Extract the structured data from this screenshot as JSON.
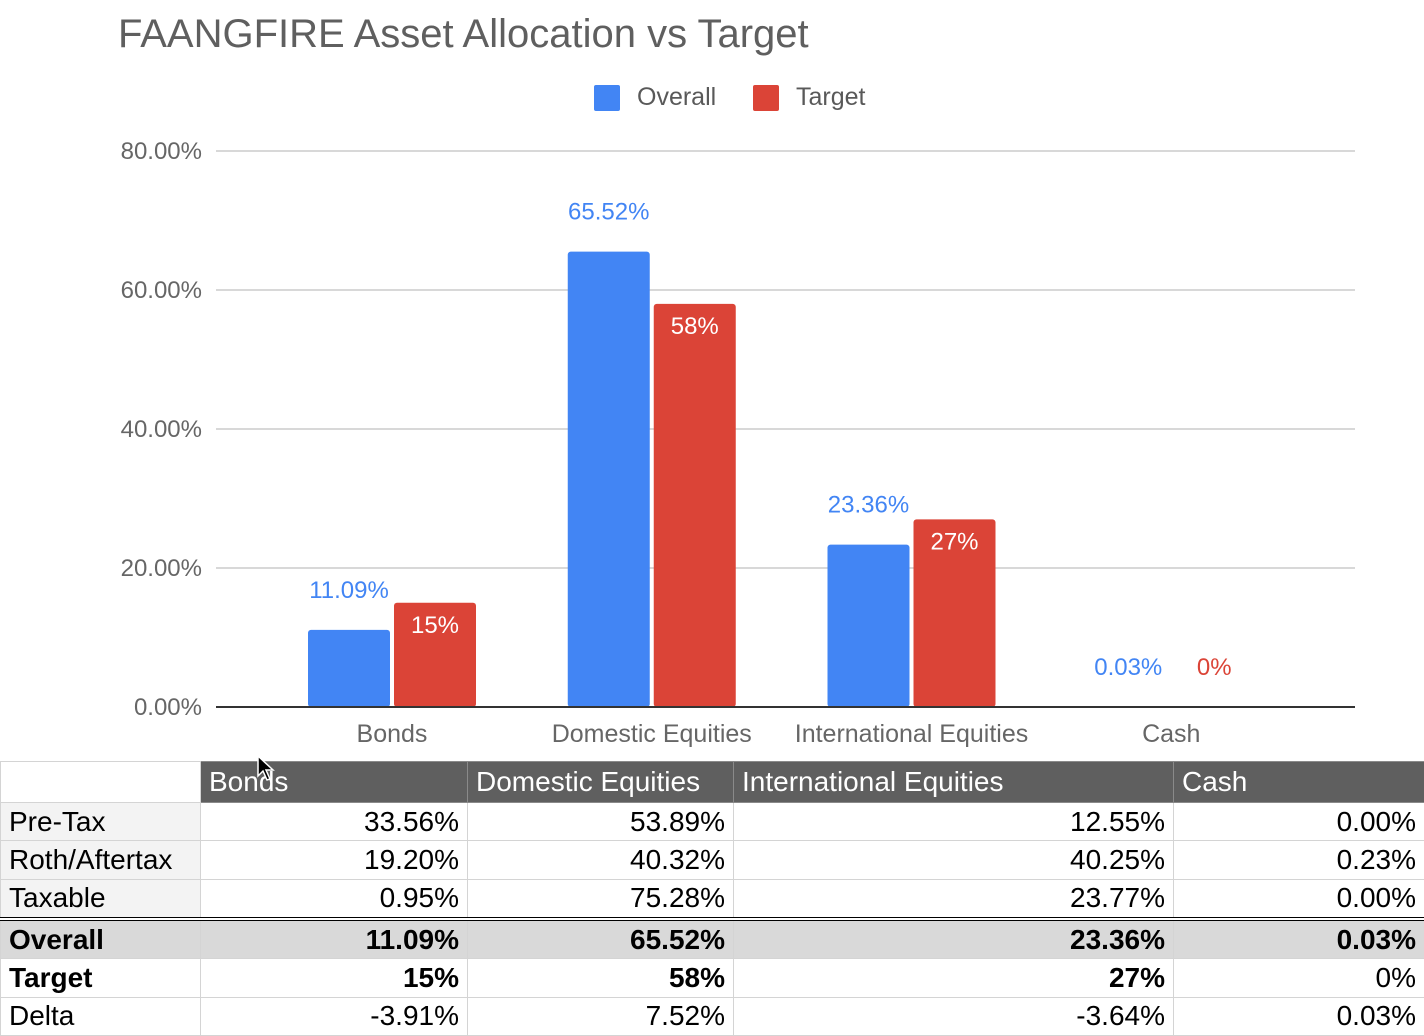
{
  "chart_data": {
    "type": "bar",
    "title": "FAANGFIRE Asset Allocation vs Target",
    "categories": [
      "Bonds",
      "Domestic Equities",
      "International Equities",
      "Cash"
    ],
    "series": [
      {
        "name": "Overall",
        "color": "#4285f4",
        "values": [
          11.09,
          65.52,
          23.36,
          0.03
        ],
        "labels": [
          "11.09%",
          "65.52%",
          "23.36%",
          "0.03%"
        ],
        "label_position": "above"
      },
      {
        "name": "Target",
        "color": "#db4437",
        "values": [
          15,
          58,
          27,
          0
        ],
        "labels": [
          "15%",
          "58%",
          "27%",
          "0%"
        ],
        "label_position": "inside"
      }
    ],
    "ylim": [
      0,
      80
    ],
    "yticks": [
      "0.00%",
      "20.00%",
      "40.00%",
      "60.00%",
      "80.00%"
    ],
    "ytick_values": [
      0,
      20,
      40,
      60,
      80
    ],
    "legend": "top-center",
    "grid": true
  },
  "table": {
    "columns": [
      "",
      "Bonds",
      "Domestic Equities",
      "International Equities",
      "Cash"
    ],
    "rows": [
      {
        "label": "Pre-Tax",
        "values": [
          "33.56%",
          "53.89%",
          "12.55%",
          "0.00%"
        ]
      },
      {
        "label": "Roth/Aftertax",
        "values": [
          "19.20%",
          "40.32%",
          "40.25%",
          "0.23%"
        ]
      },
      {
        "label": "Taxable",
        "values": [
          "0.95%",
          "75.28%",
          "23.77%",
          "0.00%"
        ]
      },
      {
        "label": "Overall",
        "values": [
          "11.09%",
          "65.52%",
          "23.36%",
          "0.03%"
        ]
      },
      {
        "label": "Target",
        "values": [
          "15%",
          "58%",
          "27%",
          "0%"
        ]
      },
      {
        "label": "Delta",
        "values": [
          "-3.91%",
          "7.52%",
          "-3.64%",
          "0.03%"
        ]
      }
    ]
  }
}
